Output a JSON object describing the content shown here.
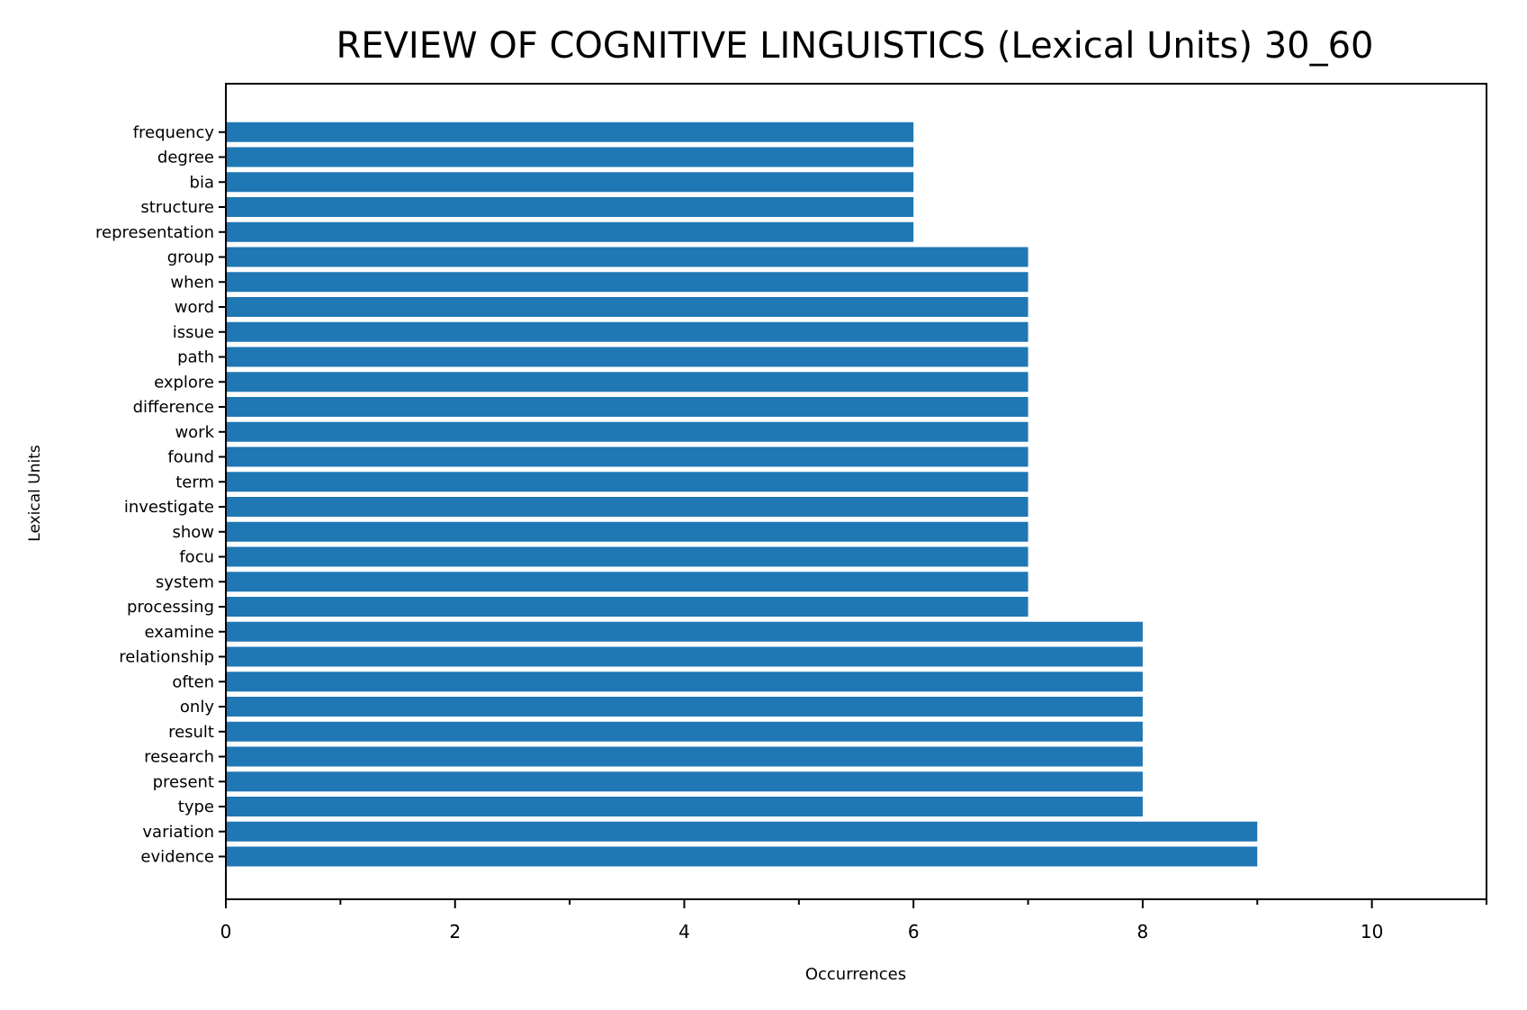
{
  "chart_data": {
    "type": "bar",
    "orientation": "horizontal",
    "title": "REVIEW OF COGNITIVE LINGUISTICS (Lexical Units) 30_60",
    "xlabel": "Occurrences",
    "ylabel": "Lexical Units",
    "xlim": [
      0,
      11
    ],
    "x_major_ticks": [
      0,
      2,
      4,
      6,
      8,
      10
    ],
    "x_minor_ticks": [
      1,
      3,
      5,
      7,
      9,
      11
    ],
    "grid": false,
    "bar_color": "#1f77b4",
    "categories": [
      "evidence",
      "variation",
      "type",
      "present",
      "research",
      "result",
      "only",
      "often",
      "relationship",
      "examine",
      "processing",
      "system",
      "focu",
      "show",
      "investigate",
      "term",
      "found",
      "work",
      "difference",
      "explore",
      "path",
      "issue",
      "word",
      "when",
      "group",
      "representation",
      "structure",
      "bia",
      "degree",
      "frequency"
    ],
    "values": [
      9,
      9,
      8,
      8,
      8,
      8,
      8,
      8,
      8,
      8,
      7,
      7,
      7,
      7,
      7,
      7,
      7,
      7,
      7,
      7,
      7,
      7,
      7,
      7,
      7,
      6,
      6,
      6,
      6,
      6
    ]
  }
}
